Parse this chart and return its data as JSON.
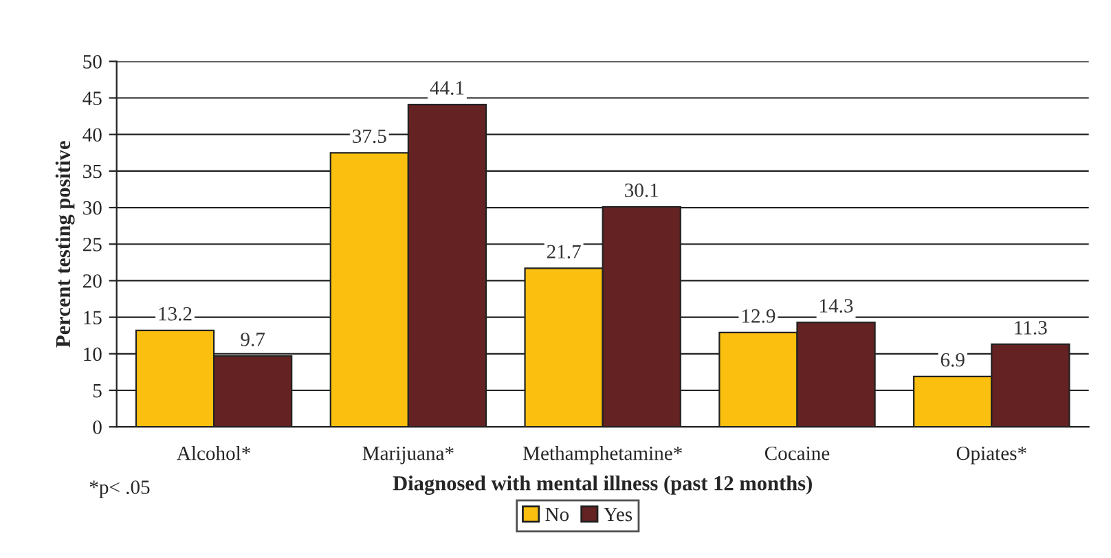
{
  "chart_data": {
    "type": "bar",
    "xlabel": "Diagnosed with mental illness (past 12 months)",
    "ylabel": "Percent testing positive",
    "categories": [
      "Alcohol*",
      "Marijuana*",
      "Methamphetamine*",
      "Cocaine",
      "Opiates*"
    ],
    "series": [
      {
        "name": "No",
        "color": "#fbbf10",
        "values": [
          13.2,
          37.5,
          21.7,
          12.9,
          6.9
        ]
      },
      {
        "name": "Yes",
        "color": "#642223",
        "values": [
          9.7,
          44.1,
          30.1,
          14.3,
          11.3
        ]
      }
    ],
    "ylim": [
      0,
      50
    ],
    "yticks": [
      0,
      5,
      10,
      15,
      20,
      25,
      30,
      35,
      40,
      45,
      50
    ],
    "grid": "y",
    "legend": "bottom",
    "data_labels": true,
    "annotations": [
      "*p< .05"
    ]
  }
}
